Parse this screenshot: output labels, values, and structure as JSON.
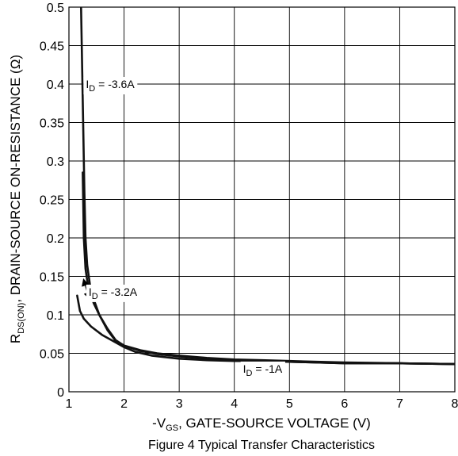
{
  "chart_data": {
    "type": "line",
    "title": "",
    "caption": "Figure 4 Typical Transfer Characteristics",
    "xlabel": {
      "prefix": "-V",
      "subscript": "GS",
      "suffix": ", GATE-SOURCE VOLTAGE (V)"
    },
    "ylabel": {
      "prefix": "R",
      "subscript": "DS(ON)",
      "suffix": ", DRAIN-SOURCE ON-RESISTANCE (Ω)"
    },
    "xlim": [
      1,
      8
    ],
    "ylim": [
      0,
      0.5
    ],
    "x_ticks": [
      1,
      2,
      3,
      4,
      5,
      6,
      7,
      8
    ],
    "x_tick_labels": [
      "1",
      "2",
      "3",
      "4",
      "5",
      "6",
      "7",
      "8"
    ],
    "y_ticks": [
      0,
      0.05,
      0.1,
      0.15,
      0.2,
      0.25,
      0.3,
      0.35,
      0.4,
      0.45,
      0.5
    ],
    "y_tick_labels": [
      "0",
      "0.05",
      "0.1",
      "0.15",
      "0.2",
      "0.25",
      "0.3",
      "0.35",
      "0.4",
      "0.45",
      "0.5"
    ],
    "grid": true,
    "series": [
      {
        "points": [
          [
            1.22,
            0.5
          ],
          [
            1.24,
            0.42
          ],
          [
            1.26,
            0.34
          ],
          [
            1.28,
            0.26
          ],
          [
            1.3,
            0.2
          ],
          [
            1.33,
            0.165
          ],
          [
            1.38,
            0.14
          ],
          [
            1.45,
            0.12
          ],
          [
            1.55,
            0.1
          ],
          [
            1.7,
            0.08
          ],
          [
            1.85,
            0.066
          ],
          [
            2.0,
            0.06
          ],
          [
            2.3,
            0.054
          ],
          [
            2.6,
            0.05
          ],
          [
            3.0,
            0.047
          ],
          [
            3.5,
            0.044
          ],
          [
            4.0,
            0.042
          ],
          [
            4.5,
            0.041
          ],
          [
            5.0,
            0.04
          ],
          [
            5.5,
            0.039
          ],
          [
            6.0,
            0.038
          ],
          [
            7.0,
            0.037
          ],
          [
            8.0,
            0.036
          ]
        ]
      },
      {
        "points": [
          [
            1.25,
            0.285
          ],
          [
            1.27,
            0.2
          ],
          [
            1.3,
            0.16
          ],
          [
            1.33,
            0.145
          ],
          [
            1.38,
            0.13
          ],
          [
            1.45,
            0.115
          ],
          [
            1.55,
            0.1
          ],
          [
            1.7,
            0.082
          ],
          [
            1.85,
            0.067
          ],
          [
            2.0,
            0.06
          ],
          [
            2.3,
            0.053
          ],
          [
            2.6,
            0.049
          ],
          [
            3.0,
            0.046
          ],
          [
            3.5,
            0.043
          ],
          [
            4.0,
            0.041
          ],
          [
            5.0,
            0.039
          ],
          [
            6.0,
            0.037
          ],
          [
            7.0,
            0.037
          ],
          [
            8.0,
            0.036
          ]
        ]
      },
      {
        "points": [
          [
            1.15,
            0.125
          ],
          [
            1.2,
            0.105
          ],
          [
            1.27,
            0.095
          ],
          [
            1.4,
            0.085
          ],
          [
            1.6,
            0.074
          ],
          [
            1.8,
            0.066
          ],
          [
            2.0,
            0.058
          ],
          [
            2.2,
            0.052
          ],
          [
            2.5,
            0.047
          ],
          [
            3.0,
            0.043
          ],
          [
            3.5,
            0.041
          ],
          [
            4.0,
            0.04
          ],
          [
            4.5,
            0.04
          ],
          [
            5.0,
            0.039
          ],
          [
            5.5,
            0.038
          ],
          [
            6.0,
            0.037
          ],
          [
            7.0,
            0.037
          ],
          [
            8.0,
            0.036
          ]
        ]
      }
    ],
    "annotations": [
      {
        "prefix": "I",
        "subscript": "D",
        "text": " = -3.6A",
        "x": 1.25,
        "y": 0.4
      },
      {
        "prefix": "I",
        "subscript": "D",
        "text": " = -3.2A",
        "x": 1.3,
        "y": 0.13
      },
      {
        "prefix": "I",
        "subscript": "D",
        "text": " = -1A",
        "x": 4.1,
        "y": 0.03
      }
    ]
  }
}
